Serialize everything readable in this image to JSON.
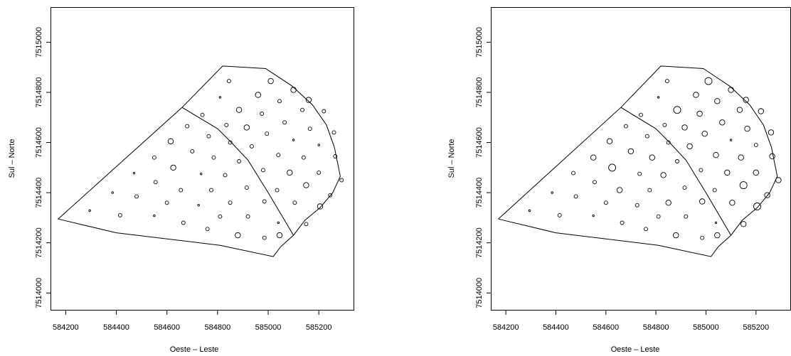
{
  "chart_data": [
    {
      "type": "scatter",
      "xlabel": "Oeste – Leste",
      "ylabel": "Sul – Norte",
      "xlim": [
        584140,
        585340
      ],
      "ylim": [
        7513930,
        7515140
      ],
      "xticks": [
        584200,
        584400,
        584600,
        584800,
        585000,
        585200
      ],
      "yticks": [
        7514000,
        7514200,
        7514400,
        7514600,
        7514800,
        7515000
      ],
      "grid": false,
      "boundary": [
        [
          584170,
          7514295
        ],
        [
          584660,
          7514740
        ],
        [
          584820,
          7514905
        ],
        [
          584990,
          7514895
        ],
        [
          585095,
          7514825
        ],
        [
          585175,
          7514750
        ],
        [
          585230,
          7514670
        ],
        [
          585262,
          7514580
        ],
        [
          585285,
          7514465
        ],
        [
          585255,
          7514400
        ],
        [
          585205,
          7514340
        ],
        [
          585145,
          7514290
        ],
        [
          585100,
          7514230
        ],
        [
          585050,
          7514185
        ],
        [
          585020,
          7514145
        ],
        [
          584810,
          7514190
        ],
        [
          584400,
          7514240
        ],
        [
          584170,
          7514295
        ]
      ],
      "division_lines": [
        [
          [
            584660,
            7514740
          ],
          [
            584800,
            7514655
          ],
          [
            584855,
            7514600
          ],
          [
            584920,
            7514530
          ],
          [
            585000,
            7514400
          ],
          [
            585100,
            7514230
          ]
        ]
      ],
      "points": [
        {
          "x": 584295,
          "y": 7514328,
          "r": 1
        },
        {
          "x": 584415,
          "y": 7514310,
          "r": 2
        },
        {
          "x": 584385,
          "y": 7514400,
          "r": 1
        },
        {
          "x": 584480,
          "y": 7514385,
          "r": 2
        },
        {
          "x": 584470,
          "y": 7514478,
          "r": 1
        },
        {
          "x": 584550,
          "y": 7514308,
          "r": 1
        },
        {
          "x": 584555,
          "y": 7514442,
          "r": 2
        },
        {
          "x": 584550,
          "y": 7514540,
          "r": 2
        },
        {
          "x": 584600,
          "y": 7514360,
          "r": 2
        },
        {
          "x": 584615,
          "y": 7514605,
          "r": 3
        },
        {
          "x": 584625,
          "y": 7514500,
          "r": 3
        },
        {
          "x": 584655,
          "y": 7514410,
          "r": 2
        },
        {
          "x": 584665,
          "y": 7514280,
          "r": 2
        },
        {
          "x": 584680,
          "y": 7514665,
          "r": 2
        },
        {
          "x": 584700,
          "y": 7514565,
          "r": 2
        },
        {
          "x": 584725,
          "y": 7514350,
          "r": 1
        },
        {
          "x": 584735,
          "y": 7514475,
          "r": 1
        },
        {
          "x": 584740,
          "y": 7514710,
          "r": 2
        },
        {
          "x": 584760,
          "y": 7514255,
          "r": 2
        },
        {
          "x": 584765,
          "y": 7514625,
          "r": 2
        },
        {
          "x": 584775,
          "y": 7514410,
          "r": 2
        },
        {
          "x": 584785,
          "y": 7514540,
          "r": 2
        },
        {
          "x": 584810,
          "y": 7514305,
          "r": 2
        },
        {
          "x": 584810,
          "y": 7514780,
          "r": 1
        },
        {
          "x": 584830,
          "y": 7514470,
          "r": 2
        },
        {
          "x": 584835,
          "y": 7514670,
          "r": 2
        },
        {
          "x": 584850,
          "y": 7514360,
          "r": 2
        },
        {
          "x": 584850,
          "y": 7514600,
          "r": 2
        },
        {
          "x": 584845,
          "y": 7514845,
          "r": 2
        },
        {
          "x": 584880,
          "y": 7514230,
          "r": 3
        },
        {
          "x": 584885,
          "y": 7514525,
          "r": 2
        },
        {
          "x": 584885,
          "y": 7514730,
          "r": 3
        },
        {
          "x": 584915,
          "y": 7514420,
          "r": 2
        },
        {
          "x": 584915,
          "y": 7514660,
          "r": 3
        },
        {
          "x": 584920,
          "y": 7514305,
          "r": 2
        },
        {
          "x": 584935,
          "y": 7514585,
          "r": 2
        },
        {
          "x": 584960,
          "y": 7514790,
          "r": 3
        },
        {
          "x": 584975,
          "y": 7514715,
          "r": 2
        },
        {
          "x": 584980,
          "y": 7514490,
          "r": 2
        },
        {
          "x": 584985,
          "y": 7514220,
          "r": 2
        },
        {
          "x": 584985,
          "y": 7514365,
          "r": 2
        },
        {
          "x": 584995,
          "y": 7514635,
          "r": 2
        },
        {
          "x": 585010,
          "y": 7514845,
          "r": 3
        },
        {
          "x": 585035,
          "y": 7514410,
          "r": 2
        },
        {
          "x": 585040,
          "y": 7514550,
          "r": 2
        },
        {
          "x": 585040,
          "y": 7514280,
          "r": 1
        },
        {
          "x": 585045,
          "y": 7514230,
          "r": 3
        },
        {
          "x": 585045,
          "y": 7514765,
          "r": 2
        },
        {
          "x": 585065,
          "y": 7514680,
          "r": 2
        },
        {
          "x": 585085,
          "y": 7514480,
          "r": 3
        },
        {
          "x": 585100,
          "y": 7514810,
          "r": 3
        },
        {
          "x": 585100,
          "y": 7514610,
          "r": 1
        },
        {
          "x": 585105,
          "y": 7514360,
          "r": 2
        },
        {
          "x": 585135,
          "y": 7514730,
          "r": 2
        },
        {
          "x": 585140,
          "y": 7514540,
          "r": 2
        },
        {
          "x": 585150,
          "y": 7514430,
          "r": 3
        },
        {
          "x": 585150,
          "y": 7514275,
          "r": 2
        },
        {
          "x": 585160,
          "y": 7514770,
          "r": 3
        },
        {
          "x": 585165,
          "y": 7514655,
          "r": 2
        },
        {
          "x": 585200,
          "y": 7514480,
          "r": 2
        },
        {
          "x": 585200,
          "y": 7514590,
          "r": 1
        },
        {
          "x": 585205,
          "y": 7514345,
          "r": 3
        },
        {
          "x": 585220,
          "y": 7514725,
          "r": 2
        },
        {
          "x": 585245,
          "y": 7514390,
          "r": 2
        },
        {
          "x": 585260,
          "y": 7514640,
          "r": 2
        },
        {
          "x": 585265,
          "y": 7514545,
          "r": 2
        },
        {
          "x": 585290,
          "y": 7514450,
          "r": 2
        }
      ]
    },
    {
      "type": "scatter",
      "xlabel": "Oeste – Leste",
      "ylabel": "Sul – Norte",
      "xlim": [
        584140,
        585340
      ],
      "ylim": [
        7513930,
        7515140
      ],
      "xticks": [
        584200,
        584400,
        584600,
        584800,
        585000,
        585200
      ],
      "yticks": [
        7514000,
        7514200,
        7514400,
        7514600,
        7514800,
        7515000
      ],
      "grid": false,
      "boundary": [
        [
          584170,
          7514295
        ],
        [
          584660,
          7514740
        ],
        [
          584820,
          7514905
        ],
        [
          584990,
          7514895
        ],
        [
          585095,
          7514825
        ],
        [
          585175,
          7514750
        ],
        [
          585230,
          7514670
        ],
        [
          585262,
          7514580
        ],
        [
          585285,
          7514465
        ],
        [
          585255,
          7514400
        ],
        [
          585205,
          7514340
        ],
        [
          585145,
          7514290
        ],
        [
          585100,
          7514230
        ],
        [
          585050,
          7514185
        ],
        [
          585020,
          7514145
        ],
        [
          584810,
          7514190
        ],
        [
          584400,
          7514240
        ],
        [
          584170,
          7514295
        ]
      ],
      "division_lines": [
        [
          [
            584660,
            7514740
          ],
          [
            584800,
            7514655
          ],
          [
            584855,
            7514600
          ],
          [
            584920,
            7514530
          ],
          [
            585000,
            7514400
          ],
          [
            585100,
            7514230
          ]
        ]
      ],
      "points": [
        {
          "x": 584295,
          "y": 7514328,
          "r": 1
        },
        {
          "x": 584415,
          "y": 7514310,
          "r": 2
        },
        {
          "x": 584385,
          "y": 7514400,
          "r": 1
        },
        {
          "x": 584480,
          "y": 7514385,
          "r": 2
        },
        {
          "x": 584470,
          "y": 7514478,
          "r": 2
        },
        {
          "x": 584550,
          "y": 7514308,
          "r": 1
        },
        {
          "x": 584555,
          "y": 7514442,
          "r": 2
        },
        {
          "x": 584550,
          "y": 7514540,
          "r": 3
        },
        {
          "x": 584600,
          "y": 7514360,
          "r": 2
        },
        {
          "x": 584615,
          "y": 7514605,
          "r": 3
        },
        {
          "x": 584625,
          "y": 7514500,
          "r": 4
        },
        {
          "x": 584655,
          "y": 7514410,
          "r": 3
        },
        {
          "x": 584665,
          "y": 7514280,
          "r": 2
        },
        {
          "x": 584680,
          "y": 7514665,
          "r": 2
        },
        {
          "x": 584700,
          "y": 7514565,
          "r": 3
        },
        {
          "x": 584725,
          "y": 7514350,
          "r": 2
        },
        {
          "x": 584735,
          "y": 7514475,
          "r": 2
        },
        {
          "x": 584740,
          "y": 7514710,
          "r": 2
        },
        {
          "x": 584760,
          "y": 7514255,
          "r": 2
        },
        {
          "x": 584765,
          "y": 7514625,
          "r": 2
        },
        {
          "x": 584775,
          "y": 7514410,
          "r": 2
        },
        {
          "x": 584785,
          "y": 7514540,
          "r": 3
        },
        {
          "x": 584810,
          "y": 7514305,
          "r": 2
        },
        {
          "x": 584810,
          "y": 7514780,
          "r": 1
        },
        {
          "x": 584830,
          "y": 7514470,
          "r": 3
        },
        {
          "x": 584835,
          "y": 7514670,
          "r": 2
        },
        {
          "x": 584850,
          "y": 7514360,
          "r": 3
        },
        {
          "x": 584850,
          "y": 7514600,
          "r": 2
        },
        {
          "x": 584845,
          "y": 7514845,
          "r": 2
        },
        {
          "x": 584880,
          "y": 7514230,
          "r": 3
        },
        {
          "x": 584885,
          "y": 7514525,
          "r": 2
        },
        {
          "x": 584885,
          "y": 7514730,
          "r": 4
        },
        {
          "x": 584915,
          "y": 7514420,
          "r": 2
        },
        {
          "x": 584915,
          "y": 7514660,
          "r": 3
        },
        {
          "x": 584920,
          "y": 7514305,
          "r": 2
        },
        {
          "x": 584935,
          "y": 7514585,
          "r": 3
        },
        {
          "x": 584960,
          "y": 7514790,
          "r": 3
        },
        {
          "x": 584975,
          "y": 7514715,
          "r": 3
        },
        {
          "x": 584980,
          "y": 7514490,
          "r": 2
        },
        {
          "x": 584985,
          "y": 7514220,
          "r": 2
        },
        {
          "x": 584985,
          "y": 7514365,
          "r": 3
        },
        {
          "x": 584995,
          "y": 7514635,
          "r": 3
        },
        {
          "x": 585010,
          "y": 7514845,
          "r": 4
        },
        {
          "x": 585035,
          "y": 7514410,
          "r": 2
        },
        {
          "x": 585040,
          "y": 7514550,
          "r": 3
        },
        {
          "x": 585040,
          "y": 7514280,
          "r": 1
        },
        {
          "x": 585045,
          "y": 7514230,
          "r": 3
        },
        {
          "x": 585045,
          "y": 7514765,
          "r": 3
        },
        {
          "x": 585065,
          "y": 7514680,
          "r": 3
        },
        {
          "x": 585085,
          "y": 7514480,
          "r": 3
        },
        {
          "x": 585100,
          "y": 7514810,
          "r": 3
        },
        {
          "x": 585100,
          "y": 7514610,
          "r": 1
        },
        {
          "x": 585105,
          "y": 7514360,
          "r": 3
        },
        {
          "x": 585135,
          "y": 7514730,
          "r": 3
        },
        {
          "x": 585140,
          "y": 7514540,
          "r": 3
        },
        {
          "x": 585150,
          "y": 7514430,
          "r": 4
        },
        {
          "x": 585150,
          "y": 7514275,
          "r": 3
        },
        {
          "x": 585160,
          "y": 7514770,
          "r": 3
        },
        {
          "x": 585165,
          "y": 7514655,
          "r": 3
        },
        {
          "x": 585200,
          "y": 7514480,
          "r": 3
        },
        {
          "x": 585200,
          "y": 7514590,
          "r": 2
        },
        {
          "x": 585205,
          "y": 7514345,
          "r": 4
        },
        {
          "x": 585220,
          "y": 7514725,
          "r": 3
        },
        {
          "x": 585245,
          "y": 7514390,
          "r": 3
        },
        {
          "x": 585260,
          "y": 7514640,
          "r": 3
        },
        {
          "x": 585265,
          "y": 7514545,
          "r": 3
        },
        {
          "x": 585290,
          "y": 7514450,
          "r": 3
        }
      ]
    }
  ]
}
